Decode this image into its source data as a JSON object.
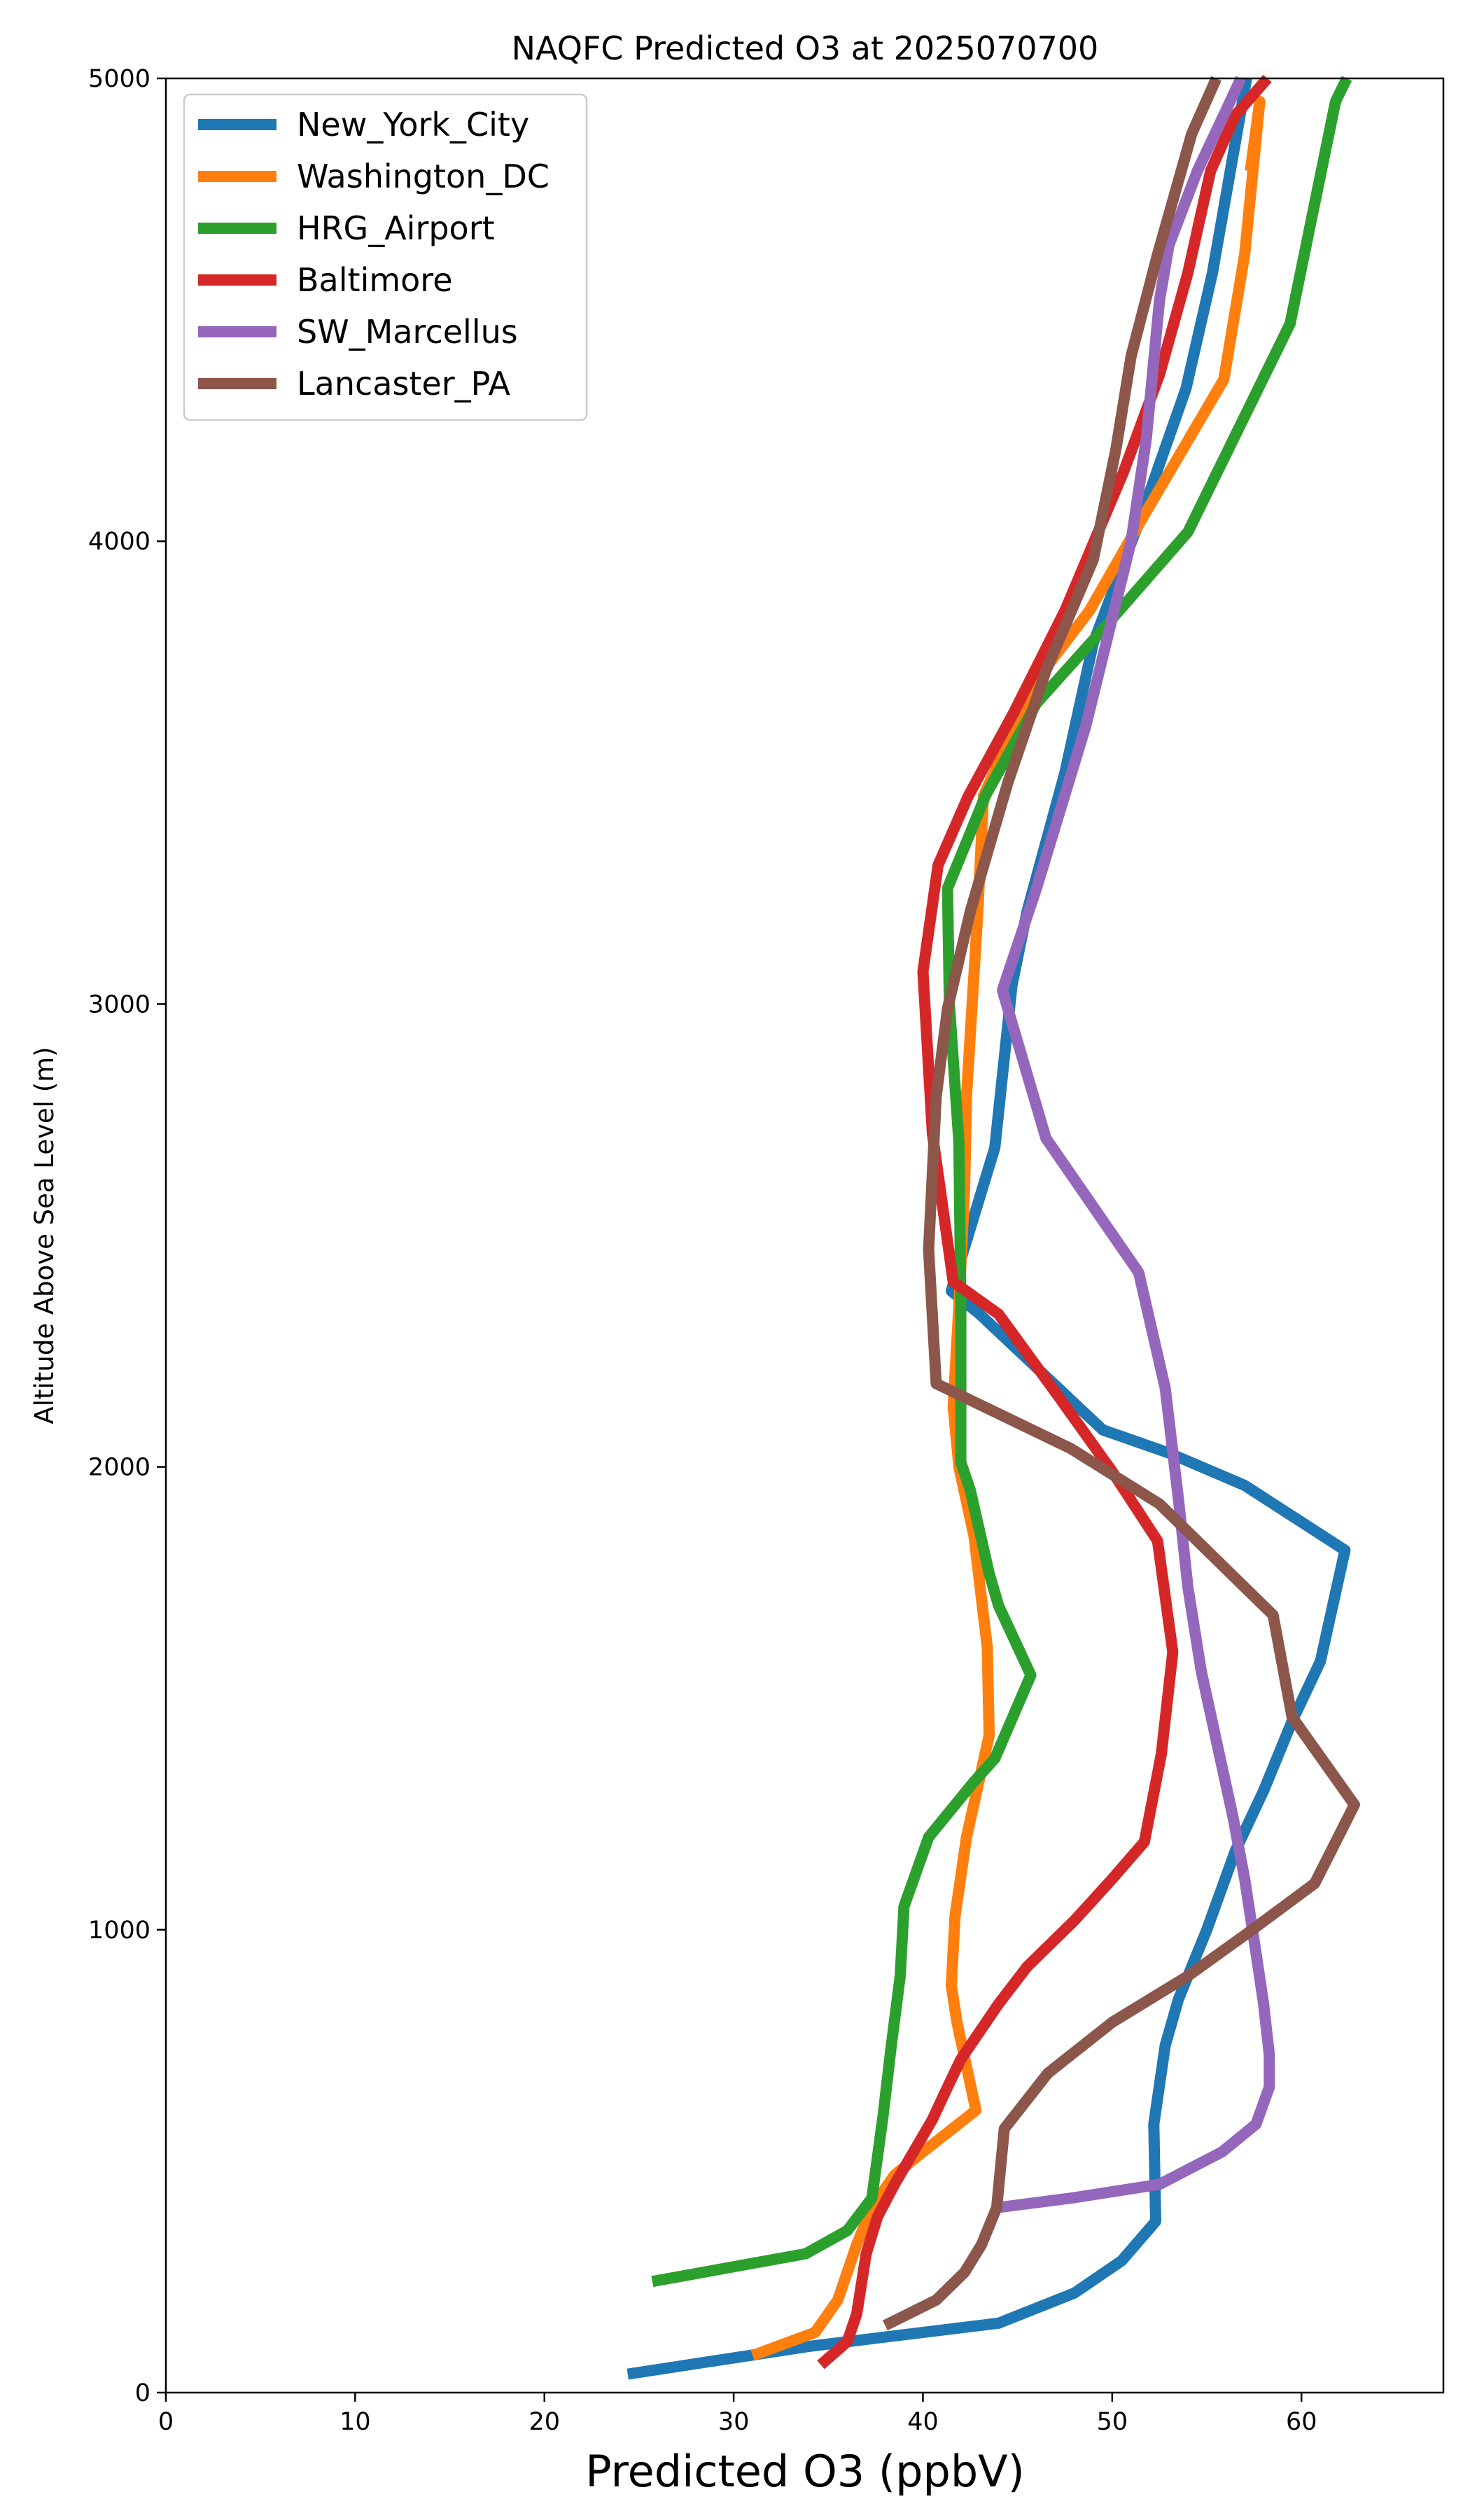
{
  "chart_data": {
    "type": "line",
    "title": "NAQFC Predicted O3 at 2025070700",
    "xlabel": "Predicted O3 (ppbV)",
    "ylabel": "Altitude Above Sea Level (m)",
    "xlim": [
      0,
      67.5
    ],
    "ylim": [
      0,
      5000
    ],
    "xticks": [
      0,
      10,
      20,
      30,
      40,
      50,
      60
    ],
    "yticks": [
      0,
      1000,
      2000,
      3000,
      4000,
      5000
    ],
    "grid": false,
    "legend_position": "top-left",
    "series": [
      {
        "name": "New_York_City",
        "color": "#1f77b4",
        "points": [
          [
            24.4,
            40
          ],
          [
            34,
            100
          ],
          [
            44,
            150
          ],
          [
            48,
            215
          ],
          [
            50.5,
            285
          ],
          [
            52.3,
            370
          ],
          [
            52.2,
            580
          ],
          [
            52.8,
            750
          ],
          [
            53.5,
            850
          ],
          [
            55,
            1000
          ],
          [
            56.5,
            1170
          ],
          [
            58,
            1300
          ],
          [
            59.5,
            1450
          ],
          [
            61,
            1580
          ],
          [
            62.3,
            1820
          ],
          [
            57,
            1960
          ],
          [
            53,
            2030
          ],
          [
            49.5,
            2080
          ],
          [
            43,
            2330
          ],
          [
            41.5,
            2380
          ],
          [
            43.8,
            2690
          ],
          [
            44.7,
            3040
          ],
          [
            45.5,
            3200
          ],
          [
            47.5,
            3500
          ],
          [
            49,
            3780
          ],
          [
            51.5,
            4050
          ],
          [
            53.9,
            4330
          ],
          [
            55.3,
            4580
          ],
          [
            57.1,
            5000
          ]
        ]
      },
      {
        "name": "Washington_DC",
        "color": "#ff7f0e",
        "points": [
          [
            31,
            80
          ],
          [
            34.3,
            130
          ],
          [
            35.5,
            200
          ],
          [
            36.5,
            320
          ],
          [
            37.3,
            400
          ],
          [
            38.5,
            470
          ],
          [
            40,
            520
          ],
          [
            42.8,
            610
          ],
          [
            41.8,
            800
          ],
          [
            41.5,
            880
          ],
          [
            41.7,
            1030
          ],
          [
            42.3,
            1200
          ],
          [
            43.5,
            1420
          ],
          [
            43.4,
            1610
          ],
          [
            42.7,
            1850
          ],
          [
            41.9,
            2000
          ],
          [
            41.6,
            2130
          ],
          [
            41.9,
            2350
          ],
          [
            42.2,
            2600
          ],
          [
            42.3,
            2800
          ],
          [
            42.9,
            3200
          ],
          [
            43.2,
            3450
          ],
          [
            46,
            3700
          ],
          [
            48.8,
            3850
          ],
          [
            51.6,
            4050
          ],
          [
            55.9,
            4350
          ],
          [
            57,
            4620
          ],
          [
            57.8,
            4950
          ],
          [
            57.3,
            4800
          ]
        ]
      },
      {
        "name": "HRG_Airport",
        "color": "#2ca02c",
        "points": [
          [
            25.7,
            240
          ],
          [
            33.8,
            300
          ],
          [
            36,
            350
          ],
          [
            37.3,
            420
          ],
          [
            37.5,
            480
          ],
          [
            37.9,
            600
          ],
          [
            38.3,
            740
          ],
          [
            38.8,
            900
          ],
          [
            39,
            1050
          ],
          [
            40.3,
            1200
          ],
          [
            42.7,
            1320
          ],
          [
            43.8,
            1370
          ],
          [
            45.7,
            1550
          ],
          [
            44,
            1700
          ],
          [
            43.5,
            1770
          ],
          [
            42.5,
            1950
          ],
          [
            42,
            2010
          ],
          [
            42,
            2350
          ],
          [
            41.9,
            2700
          ],
          [
            41.4,
            3000
          ],
          [
            41.3,
            3250
          ],
          [
            43.3,
            3450
          ],
          [
            46,
            3650
          ],
          [
            49.3,
            3800
          ],
          [
            54,
            4020
          ],
          [
            59.4,
            4470
          ],
          [
            61.8,
            4950
          ],
          [
            62.4,
            5000
          ]
        ]
      },
      {
        "name": "Baltimore",
        "color": "#d62728",
        "points": [
          [
            34.6,
            60
          ],
          [
            36,
            110
          ],
          [
            36.5,
            170
          ],
          [
            37,
            300
          ],
          [
            37.6,
            380
          ],
          [
            38.5,
            450
          ],
          [
            39.5,
            520
          ],
          [
            40.5,
            590
          ],
          [
            41.3,
            660
          ],
          [
            42,
            720
          ],
          [
            44,
            840
          ],
          [
            45.5,
            920
          ],
          [
            48,
            1020
          ],
          [
            50,
            1110
          ],
          [
            51.7,
            1190
          ],
          [
            52.6,
            1380
          ],
          [
            53.2,
            1600
          ],
          [
            52.4,
            1840
          ],
          [
            50,
            1990
          ],
          [
            47.2,
            2150
          ],
          [
            45.6,
            2240
          ],
          [
            44,
            2330
          ],
          [
            41.6,
            2400
          ],
          [
            40.5,
            2720
          ],
          [
            40,
            3070
          ],
          [
            40.8,
            3300
          ],
          [
            42.4,
            3450
          ],
          [
            44.8,
            3630
          ],
          [
            47.5,
            3850
          ],
          [
            50.6,
            4150
          ],
          [
            52.5,
            4360
          ],
          [
            54,
            4580
          ],
          [
            55.2,
            4800
          ],
          [
            56.5,
            4920
          ],
          [
            58.2,
            5000
          ]
        ]
      },
      {
        "name": "SW_Marcellus",
        "color": "#9467bd",
        "points": [
          [
            44,
            400
          ],
          [
            47.8,
            420
          ],
          [
            52.5,
            450
          ],
          [
            55.8,
            520
          ],
          [
            57.6,
            580
          ],
          [
            58.3,
            660
          ],
          [
            58.3,
            730
          ],
          [
            58,
            840
          ],
          [
            57.6,
            950
          ],
          [
            57,
            1110
          ],
          [
            56.4,
            1240
          ],
          [
            55.6,
            1390
          ],
          [
            54.7,
            1560
          ],
          [
            54,
            1740
          ],
          [
            53.5,
            1930
          ],
          [
            52.8,
            2170
          ],
          [
            51.4,
            2420
          ],
          [
            46.5,
            2710
          ],
          [
            44.2,
            3030
          ],
          [
            46,
            3250
          ],
          [
            48.6,
            3600
          ],
          [
            51,
            4000
          ],
          [
            51.8,
            4220
          ],
          [
            52.5,
            4520
          ],
          [
            53,
            4640
          ],
          [
            54.5,
            4800
          ],
          [
            56,
            4930
          ],
          [
            56.8,
            5000
          ]
        ]
      },
      {
        "name": "Lancaster_PA",
        "color": "#8c564b",
        "points": [
          [
            38,
            145
          ],
          [
            40.7,
            200
          ],
          [
            42.2,
            260
          ],
          [
            43.1,
            320
          ],
          [
            43.9,
            400
          ],
          [
            44.3,
            570
          ],
          [
            46.6,
            690
          ],
          [
            50,
            800
          ],
          [
            54,
            900
          ],
          [
            57.4,
            1000
          ],
          [
            60.7,
            1100
          ],
          [
            62.8,
            1270
          ],
          [
            59.5,
            1460
          ],
          [
            58.5,
            1680
          ],
          [
            52.5,
            1920
          ],
          [
            47.8,
            2040
          ],
          [
            40.7,
            2180
          ],
          [
            40.3,
            2470
          ],
          [
            40.7,
            2800
          ],
          [
            41.3,
            2990
          ],
          [
            42.5,
            3200
          ],
          [
            44.5,
            3480
          ],
          [
            46.5,
            3720
          ],
          [
            49,
            3960
          ],
          [
            50.2,
            4200
          ],
          [
            51,
            4400
          ],
          [
            52.4,
            4620
          ],
          [
            54.2,
            4880
          ],
          [
            55.5,
            5000
          ]
        ]
      }
    ]
  }
}
